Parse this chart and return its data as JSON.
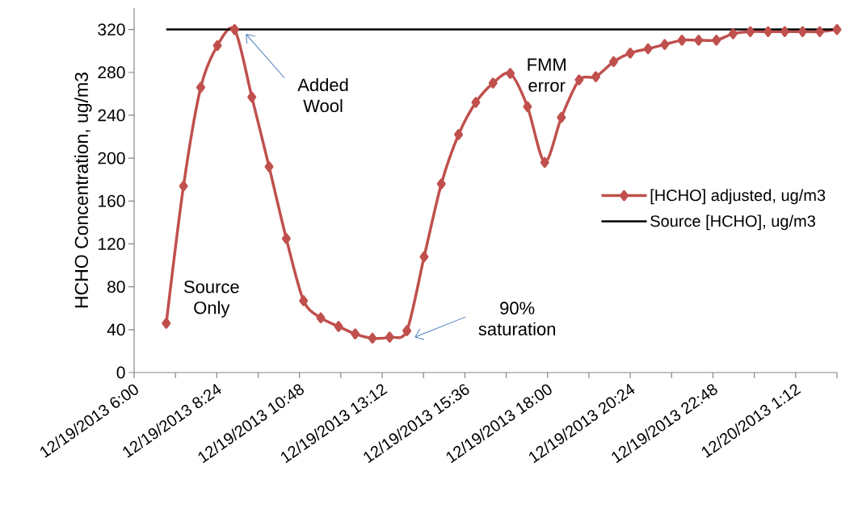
{
  "chart_data": {
    "type": "line",
    "ylabel": "HCHO Concentration, ug/m3",
    "x": [
      "2013-12-19T06:56",
      "2013-12-19T07:26",
      "2013-12-19T07:56",
      "2013-12-19T08:25",
      "2013-12-19T08:55",
      "2013-12-19T09:25",
      "2013-12-19T09:55",
      "2013-12-19T10:25",
      "2013-12-19T10:55",
      "2013-12-19T11:25",
      "2013-12-19T11:56",
      "2013-12-19T12:25",
      "2013-12-19T12:55",
      "2013-12-19T13:25",
      "2013-12-19T13:55",
      "2013-12-19T14:25",
      "2013-12-19T14:55",
      "2013-12-19T15:25",
      "2013-12-19T15:55",
      "2013-12-19T16:25",
      "2013-12-19T16:55",
      "2013-12-19T17:25",
      "2013-12-19T17:55",
      "2013-12-19T18:24",
      "2013-12-19T18:55",
      "2013-12-19T19:24",
      "2013-12-19T19:55",
      "2013-12-19T20:24",
      "2013-12-19T20:55",
      "2013-12-19T21:24",
      "2013-12-19T21:54",
      "2013-12-19T22:23",
      "2013-12-19T22:54",
      "2013-12-19T23:23",
      "2013-12-19T23:53",
      "2013-12-20T00:24",
      "2013-12-20T00:53",
      "2013-12-20T01:24",
      "2013-12-20T01:54",
      "2013-12-20T02:24"
    ],
    "series": [
      {
        "name": "[HCHO] adjusted, ug/m3",
        "color": "#c0504d",
        "marker": "diamond",
        "values": [
          46,
          174,
          266,
          305,
          320,
          257,
          192,
          125,
          67,
          51,
          43,
          36,
          32,
          33,
          39,
          108,
          176,
          222,
          252,
          270,
          279,
          248,
          196,
          238,
          273,
          276,
          290,
          298,
          302,
          306,
          310,
          310,
          310,
          316,
          318,
          318,
          318,
          318,
          318,
          320
        ]
      },
      {
        "name": "Source [HCHO], ug/m3",
        "color": "#000000",
        "marker": "none",
        "x": [
          "2013-12-19T06:56",
          "2013-12-20T02:24"
        ],
        "values": [
          320,
          320
        ]
      }
    ],
    "xlim": [
      "2013-12-19T06:00",
      "2013-12-20T02:24"
    ],
    "xticks": [
      {
        "value": "2013-12-19T06:00",
        "label": "12/19/2013 6:00"
      },
      {
        "value": "2013-12-19T07:12",
        "label": null
      },
      {
        "value": "2013-12-19T08:24",
        "label": "12/19/2013 8:24"
      },
      {
        "value": "2013-12-19T09:36",
        "label": null
      },
      {
        "value": "2013-12-19T10:48",
        "label": "12/19/2013 10:48"
      },
      {
        "value": "2013-12-19T12:00",
        "label": null
      },
      {
        "value": "2013-12-19T13:12",
        "label": "12/19/2013 13:12"
      },
      {
        "value": "2013-12-19T14:24",
        "label": null
      },
      {
        "value": "2013-12-19T15:36",
        "label": "12/19/2013 15:36"
      },
      {
        "value": "2013-12-19T16:48",
        "label": null
      },
      {
        "value": "2013-12-19T18:00",
        "label": "12/19/2013 18:00"
      },
      {
        "value": "2013-12-19T19:12",
        "label": null
      },
      {
        "value": "2013-12-19T20:24",
        "label": "12/19/2013 20:24"
      },
      {
        "value": "2013-12-19T21:36",
        "label": null
      },
      {
        "value": "2013-12-19T22:48",
        "label": "12/19/2013 22:48"
      },
      {
        "value": "2013-12-20T00:00",
        "label": null
      },
      {
        "value": "2013-12-20T01:12",
        "label": "12/20/2013 1:12"
      },
      {
        "value": "2013-12-20T02:24",
        "label": null
      }
    ],
    "ylim": [
      0,
      340
    ],
    "yticks": [
      0,
      40,
      80,
      120,
      160,
      200,
      240,
      280,
      320
    ],
    "legend": "right",
    "line_style": "solid",
    "annotations": [
      {
        "text": "Source Only",
        "x": "2013-12-19T06:56",
        "y": 46
      },
      "Added Wool",
      "FMM error",
      "90% saturation"
    ]
  }
}
